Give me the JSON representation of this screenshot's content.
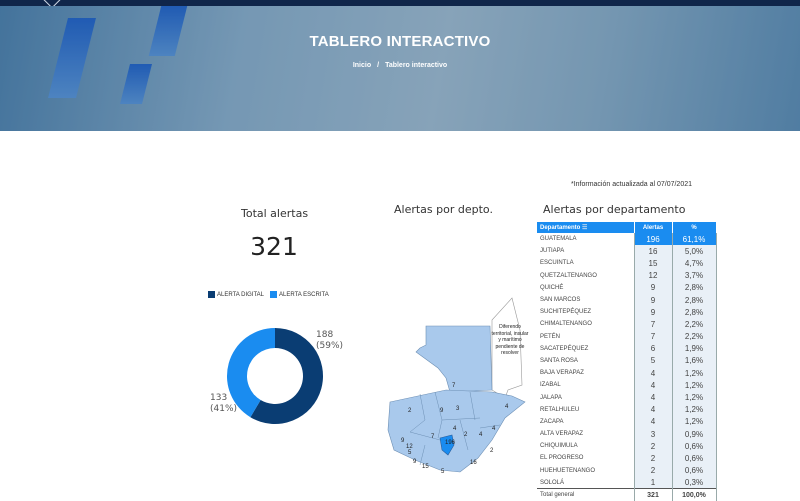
{
  "header": {
    "title": "TABLERO INTERACTIVO",
    "breadcrumb": [
      "Inicio",
      "/",
      "Tablero interactivo"
    ]
  },
  "note": "*Información actualizada al 07/07/2021",
  "total": {
    "title": "Total alertas",
    "value": "321"
  },
  "donut": {
    "legend": [
      {
        "label": "ALERTA DIGITAL",
        "color": "#0a3d73"
      },
      {
        "label": "ALERTA ESCRITA",
        "color": "#1a8cf0"
      }
    ],
    "slices": [
      {
        "label": "ALERTA DIGITAL",
        "value": 188,
        "text": "188",
        "pct": "(59%)"
      },
      {
        "label": "ALERTA ESCRITA",
        "value": 133,
        "text": "133",
        "pct": "(41%)"
      }
    ]
  },
  "map": {
    "title": "Alertas por depto.",
    "dispute_note": "Diferendo territorial, insular y marítimo pendiente de resolver",
    "labels": [
      "7",
      "3",
      "2",
      "9",
      "4",
      "2",
      "4",
      "4",
      "2",
      "9",
      "12",
      "5",
      "7",
      "196",
      "9",
      "15",
      "5",
      "16",
      "4"
    ]
  },
  "table": {
    "title": "Alertas por departamento",
    "headers": [
      "Departamento",
      "Alertas",
      "%"
    ],
    "rows": [
      [
        "GUATEMALA",
        "196",
        "61,1%"
      ],
      [
        "JUTIAPA",
        "16",
        "5,0%"
      ],
      [
        "ESCUINTLA",
        "15",
        "4,7%"
      ],
      [
        "QUETZALTENANGO",
        "12",
        "3,7%"
      ],
      [
        "QUICHÉ",
        "9",
        "2,8%"
      ],
      [
        "SAN MARCOS",
        "9",
        "2,8%"
      ],
      [
        "SUCHITEPÉQUEZ",
        "9",
        "2,8%"
      ],
      [
        "CHIMALTENANGO",
        "7",
        "2,2%"
      ],
      [
        "PETÉN",
        "7",
        "2,2%"
      ],
      [
        "SACATEPÉQUEZ",
        "6",
        "1,9%"
      ],
      [
        "SANTA ROSA",
        "5",
        "1,6%"
      ],
      [
        "BAJA VERAPAZ",
        "4",
        "1,2%"
      ],
      [
        "IZABAL",
        "4",
        "1,2%"
      ],
      [
        "JALAPA",
        "4",
        "1,2%"
      ],
      [
        "RETALHULEU",
        "4",
        "1,2%"
      ],
      [
        "ZACAPA",
        "4",
        "1,2%"
      ],
      [
        "ALTA VERAPAZ",
        "3",
        "0,9%"
      ],
      [
        "CHIQUIMULA",
        "2",
        "0,6%"
      ],
      [
        "EL PROGRESO",
        "2",
        "0,6%"
      ],
      [
        "HUEHUETENANGO",
        "2",
        "0,6%"
      ],
      [
        "SOLOLÁ",
        "1",
        "0,3%"
      ]
    ],
    "total": [
      "Total general",
      "321",
      "100,0%"
    ]
  }
}
